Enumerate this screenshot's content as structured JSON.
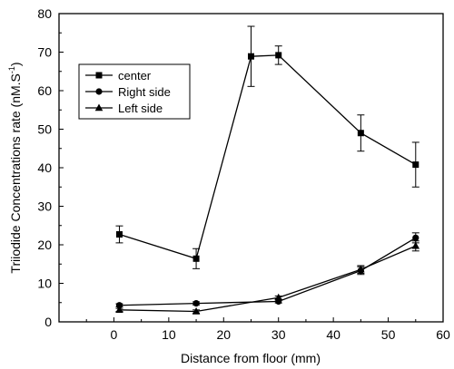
{
  "chart_data": {
    "type": "line",
    "xlabel": "Distance from floor (mm)",
    "ylabel": "Triiodide Concentrations rate (nM.S",
    "ylabel_sup": "-1",
    "ylabel_close": ")",
    "xlim": [
      -10,
      60
    ],
    "ylim": [
      0,
      80
    ],
    "x_ticks": [
      0,
      10,
      20,
      30,
      40,
      50,
      60
    ],
    "y_ticks": [
      0,
      10,
      20,
      30,
      40,
      50,
      60,
      70,
      80
    ],
    "x_tick_labels": [
      "0",
      "10",
      "20",
      "30",
      "40",
      "50",
      "60"
    ],
    "y_tick_labels": [
      "0",
      "10",
      "20",
      "30",
      "40",
      "50",
      "60",
      "70",
      "80"
    ],
    "grid": false,
    "legend_position": "top-left",
    "series": [
      {
        "name": "center",
        "marker": "square",
        "x": [
          1,
          15,
          25,
          30,
          45,
          55
        ],
        "y": [
          22.7,
          16.4,
          68.9,
          69.2,
          49.0,
          40.8
        ],
        "err": [
          2.2,
          2.6,
          7.8,
          2.4,
          4.7,
          5.8
        ]
      },
      {
        "name": "Right side",
        "marker": "circle",
        "x": [
          1,
          15,
          30,
          45,
          55
        ],
        "y": [
          4.3,
          4.8,
          5.3,
          13.3,
          21.8
        ],
        "err": [
          0.4,
          0.4,
          0.4,
          1.0,
          1.3
        ]
      },
      {
        "name": "Left side",
        "marker": "triangle",
        "x": [
          1,
          15,
          30,
          45,
          55
        ],
        "y": [
          3.1,
          2.7,
          6.3,
          13.6,
          19.7
        ],
        "err": [
          0.4,
          0.4,
          0.4,
          1.0,
          1.3
        ]
      }
    ]
  }
}
